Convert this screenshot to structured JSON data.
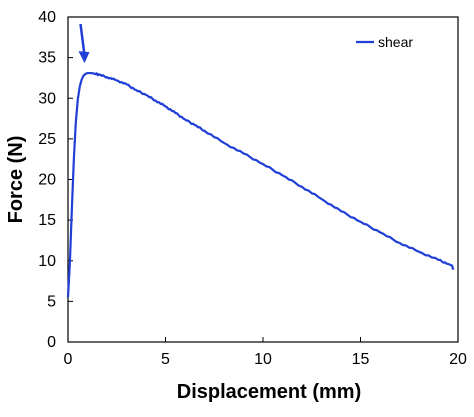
{
  "chart_data": {
    "type": "line",
    "xlabel": "Displacement (mm)",
    "ylabel": "Force (N)",
    "xlim": [
      0,
      20
    ],
    "ylim": [
      0,
      40
    ],
    "x_ticks": [
      "0",
      "5",
      "10",
      "15",
      "20"
    ],
    "y_ticks": [
      "0",
      "5",
      "10",
      "15",
      "20",
      "25",
      "30",
      "35",
      "40"
    ],
    "grid": false,
    "legend_position": "top-right",
    "series": [
      {
        "name": "shear",
        "color": "#1f3fd6",
        "x": [
          0.0,
          0.1,
          0.2,
          0.3,
          0.4,
          0.5,
          0.6,
          0.7,
          0.8,
          0.9,
          1.0,
          1.2,
          1.4,
          1.6,
          2.0,
          2.5,
          3.0,
          3.5,
          4.0,
          4.5,
          5.0,
          5.5,
          6.0,
          6.5,
          7.0,
          8.0,
          9.0,
          10.0,
          11.0,
          12.0,
          13.0,
          14.0,
          15.0,
          16.0,
          17.0,
          18.0,
          19.0,
          19.5,
          19.7,
          19.75
        ],
        "y": [
          5.5,
          10.0,
          16.5,
          22.5,
          27.0,
          29.8,
          31.4,
          32.3,
          32.8,
          33.0,
          33.1,
          33.1,
          33.0,
          32.9,
          32.6,
          32.2,
          31.7,
          31.0,
          30.4,
          29.7,
          29.0,
          28.2,
          27.4,
          26.7,
          26.0,
          24.5,
          23.2,
          21.9,
          20.5,
          19.1,
          17.6,
          16.1,
          14.8,
          13.5,
          12.2,
          11.1,
          10.1,
          9.6,
          9.4,
          8.9
        ]
      }
    ],
    "annotations": [
      {
        "type": "arrow",
        "label": "",
        "x": 1.0,
        "y": 33.1,
        "color": "#1f3fd6"
      }
    ]
  }
}
